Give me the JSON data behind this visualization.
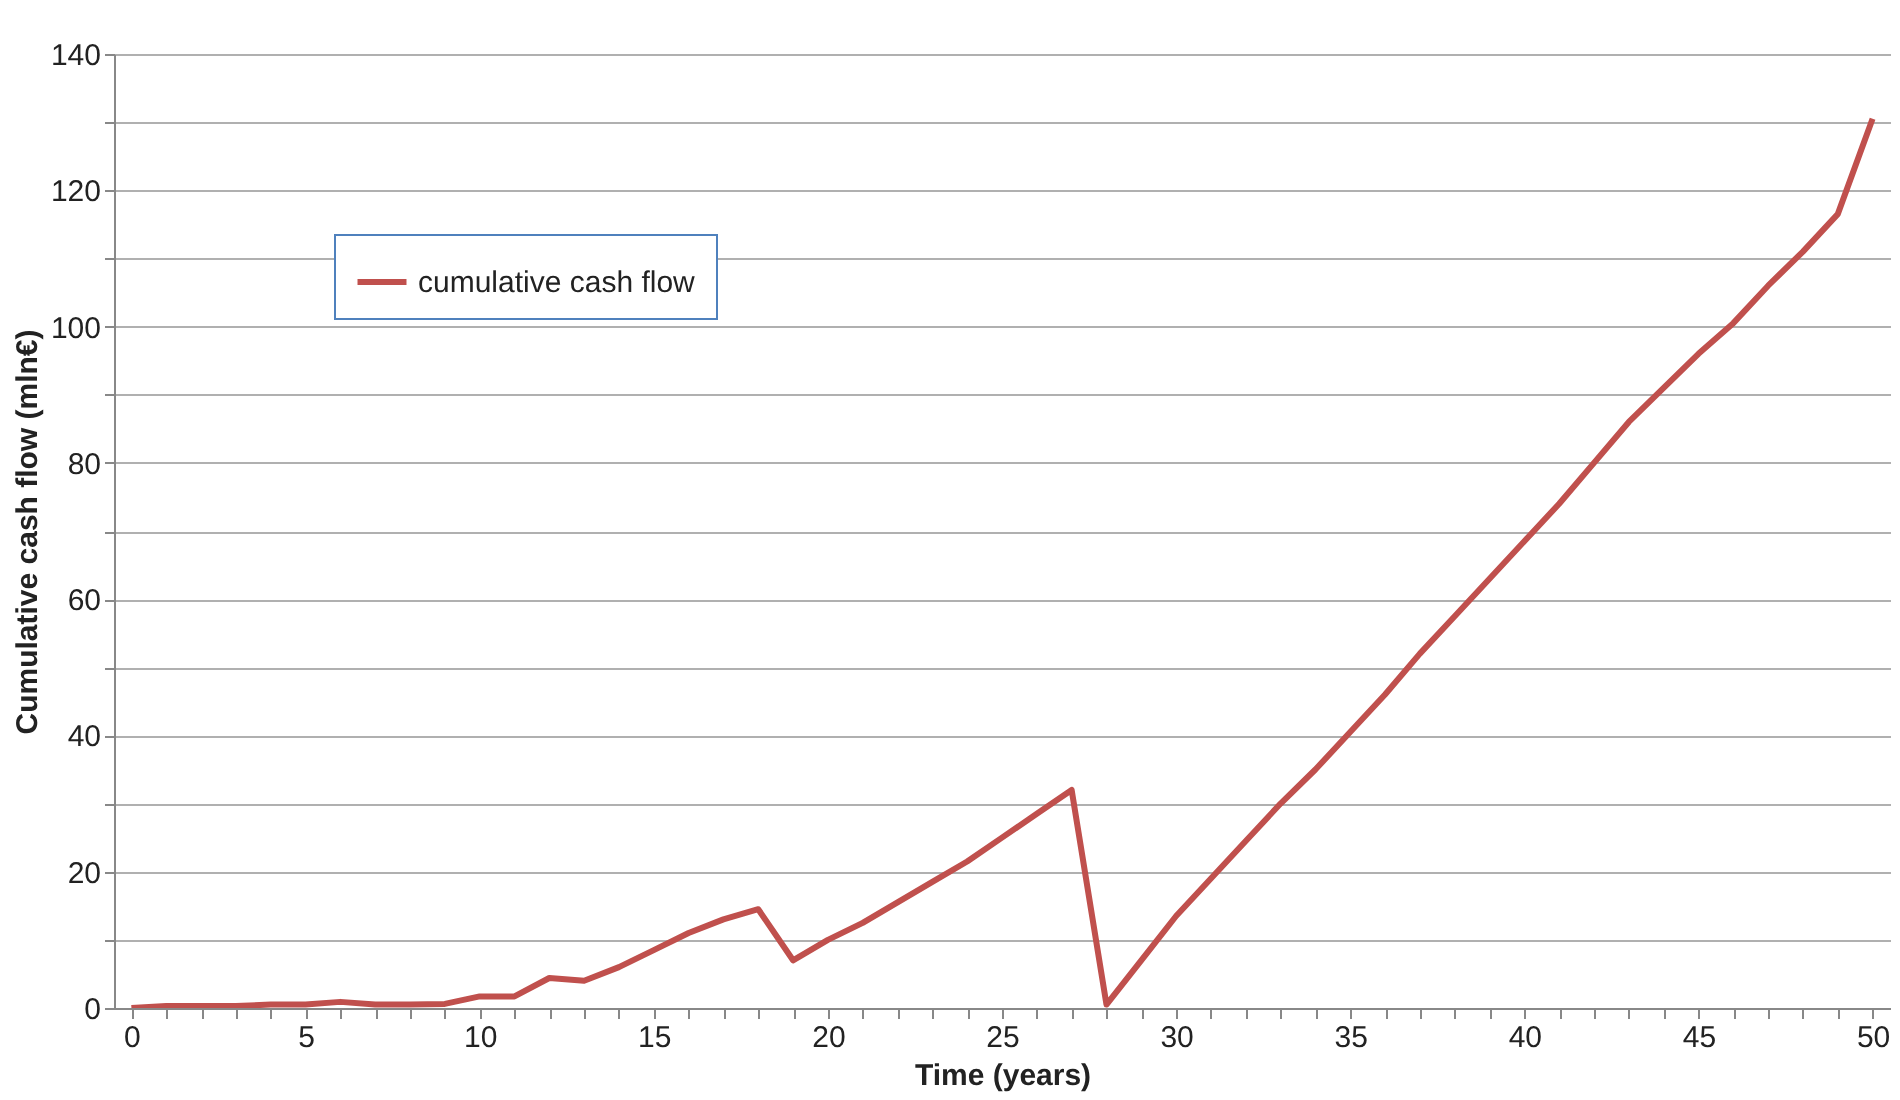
{
  "chart_data": {
    "type": "line",
    "xlabel": "Time (years)",
    "ylabel": "Cumulative cash flow (mln€)",
    "x": [
      0,
      1,
      2,
      3,
      4,
      5,
      6,
      7,
      8,
      9,
      10,
      11,
      12,
      13,
      14,
      15,
      16,
      17,
      18,
      19,
      20,
      21,
      22,
      23,
      24,
      25,
      26,
      27,
      28,
      29,
      30,
      31,
      32,
      33,
      34,
      35,
      36,
      37,
      38,
      39,
      40,
      41,
      42,
      43,
      44,
      45,
      46,
      47,
      48,
      49,
      50
    ],
    "series": [
      {
        "name": "cumulative cash flow",
        "color": "#c0504d",
        "values": [
          0,
          0.3,
          0.3,
          0.3,
          0.5,
          0.5,
          0.9,
          0.5,
          0.5,
          0.6,
          1.7,
          1.7,
          4.4,
          4.0,
          6,
          8.5,
          11,
          13,
          14.5,
          7,
          10,
          12.5,
          15.5,
          18.5,
          21.5,
          25,
          28.5,
          32,
          0.5,
          7,
          13.5,
          19,
          24.5,
          30,
          35,
          40.5,
          46,
          52,
          57.5,
          63,
          68.5,
          74,
          80,
          86,
          91,
          96,
          100.5,
          106,
          111,
          116.5,
          130.5
        ]
      }
    ],
    "xlim": [
      -0.5,
      50.5
    ],
    "xticks": [
      0,
      {
        "value": 1,
        "label": null
      },
      {
        "value": 2,
        "label": null
      },
      {
        "value": 3,
        "label": null
      },
      {
        "value": 4,
        "label": null
      },
      5,
      {
        "value": 6,
        "label": null
      },
      {
        "value": 7,
        "label": null
      },
      {
        "value": 8,
        "label": null
      },
      {
        "value": 9,
        "label": null
      },
      10,
      {
        "value": 11,
        "label": null
      },
      {
        "value": 12,
        "label": null
      },
      {
        "value": 13,
        "label": null
      },
      {
        "value": 14,
        "label": null
      },
      15,
      {
        "value": 16,
        "label": null
      },
      {
        "value": 17,
        "label": null
      },
      {
        "value": 18,
        "label": null
      },
      {
        "value": 19,
        "label": null
      },
      20,
      {
        "value": 21,
        "label": null
      },
      {
        "value": 22,
        "label": null
      },
      {
        "value": 23,
        "label": null
      },
      {
        "value": 24,
        "label": null
      },
      25,
      {
        "value": 26,
        "label": null
      },
      {
        "value": 27,
        "label": null
      },
      {
        "value": 28,
        "label": null
      },
      {
        "value": 29,
        "label": null
      },
      30,
      {
        "value": 31,
        "label": null
      },
      {
        "value": 32,
        "label": null
      },
      {
        "value": 33,
        "label": null
      },
      {
        "value": 34,
        "label": null
      },
      35,
      {
        "value": 36,
        "label": null
      },
      {
        "value": 37,
        "label": null
      },
      {
        "value": 38,
        "label": null
      },
      {
        "value": 39,
        "label": null
      },
      40,
      {
        "value": 41,
        "label": null
      },
      {
        "value": 42,
        "label": null
      },
      {
        "value": 43,
        "label": null
      },
      {
        "value": 44,
        "label": null
      },
      45,
      {
        "value": 46,
        "label": null
      },
      {
        "value": 47,
        "label": null
      },
      {
        "value": 48,
        "label": null
      },
      {
        "value": 49,
        "label": null
      },
      50
    ],
    "ylim": [
      0,
      140
    ],
    "yticks": [
      0,
      {
        "value": 10,
        "label": null
      },
      20,
      {
        "value": 30,
        "label": null
      },
      40,
      {
        "value": 50,
        "label": null
      },
      60,
      {
        "value": 70,
        "label": null
      },
      80,
      {
        "value": 90,
        "label": null
      },
      100,
      {
        "value": 110,
        "label": null
      },
      120,
      {
        "value": 130,
        "label": null
      },
      140
    ],
    "grid": "y",
    "legend": "top left",
    "marker": "none",
    "line_style": "solid"
  }
}
